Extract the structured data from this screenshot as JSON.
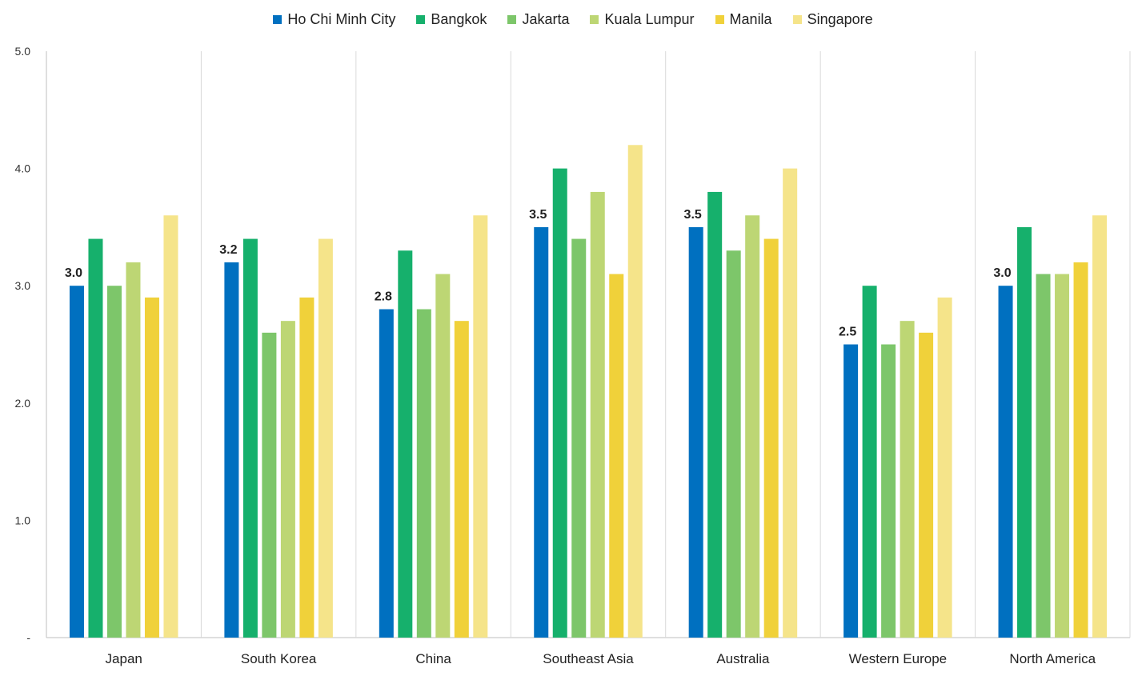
{
  "chart_data": {
    "type": "bar",
    "title": "",
    "xlabel": "",
    "ylabel": "",
    "ylim": [
      0,
      5
    ],
    "yticks": [
      "-",
      "1.0",
      "2.0",
      "3.0",
      "4.0",
      "5.0"
    ],
    "categories": [
      "Japan",
      "South Korea",
      "China",
      "Southeast Asia",
      "Australia",
      "Western Europe",
      "North America"
    ],
    "series": [
      {
        "name": "Ho Chi Minh City",
        "color": "#0070C0",
        "values": [
          3.0,
          3.2,
          2.8,
          3.5,
          3.5,
          2.5,
          3.0
        ]
      },
      {
        "name": "Bangkok",
        "color": "#16B06C",
        "values": [
          3.4,
          3.4,
          3.3,
          4.0,
          3.8,
          3.0,
          3.5
        ]
      },
      {
        "name": "Jakarta",
        "color": "#7DC66A",
        "values": [
          3.0,
          2.6,
          2.8,
          3.4,
          3.3,
          2.5,
          3.1
        ]
      },
      {
        "name": "Kuala Lumpur",
        "color": "#BDD674",
        "values": [
          3.2,
          2.7,
          3.1,
          3.8,
          3.6,
          2.7,
          3.1
        ]
      },
      {
        "name": "Manila",
        "color": "#F0D13A",
        "values": [
          2.9,
          2.9,
          2.7,
          3.1,
          3.4,
          2.6,
          3.2
        ]
      },
      {
        "name": "Singapore",
        "color": "#F5E48A",
        "values": [
          3.6,
          3.4,
          3.6,
          4.2,
          4.0,
          2.9,
          3.6
        ]
      }
    ],
    "data_labels": {
      "series": "Ho Chi Minh City",
      "labels": [
        "3.0",
        "3.2",
        "2.8",
        "3.5",
        "3.5",
        "2.5",
        "3.0"
      ]
    },
    "legend_position": "top-center",
    "grid": "vertical-separators"
  }
}
